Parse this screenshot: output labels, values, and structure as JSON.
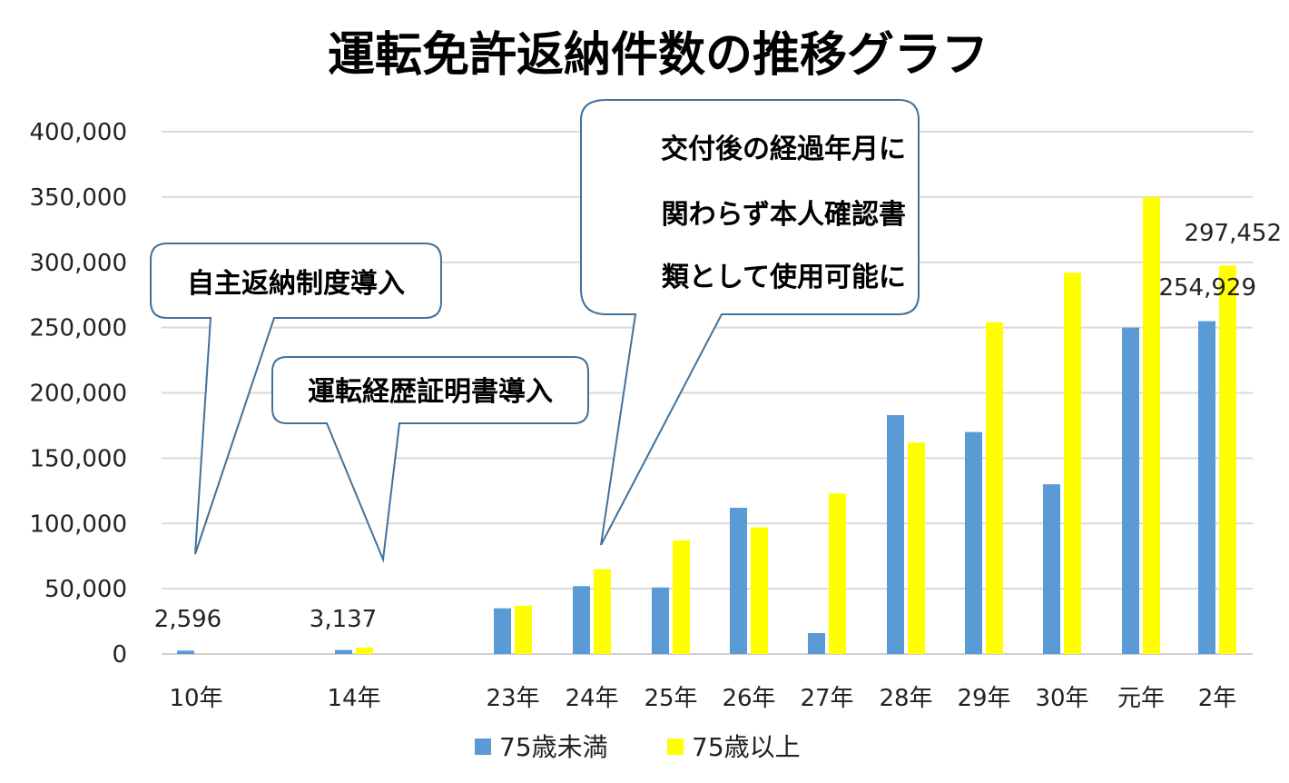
{
  "chart_data": {
    "type": "bar",
    "title": "運転免許返納件数の推移グラフ",
    "categories": [
      "10年",
      "14年",
      "23年",
      "24年",
      "25年",
      "26年",
      "27年",
      "28年",
      "29年",
      "30年",
      "元年",
      "2年"
    ],
    "series": [
      {
        "name": "75歳未満",
        "color": "#5b9bd5",
        "values": [
          2596,
          3137,
          35000,
          52000,
          51000,
          112000,
          16000,
          183000,
          170000,
          130000,
          250000,
          254929
        ]
      },
      {
        "name": "75歳以上",
        "color": "#ffff00",
        "values": [
          0,
          5000,
          37000,
          65000,
          87000,
          97000,
          123000,
          162000,
          254000,
          292000,
          350000,
          297452
        ]
      }
    ],
    "ylim": [
      0,
      400000
    ],
    "yticks": [
      "0",
      "50,000",
      "100,000",
      "150,000",
      "200,000",
      "250,000",
      "300,000",
      "350,000",
      "400,000"
    ],
    "ytick_values": [
      0,
      50000,
      100000,
      150000,
      200000,
      250000,
      300000,
      350000,
      400000
    ],
    "data_labels": [
      {
        "text": "2,596",
        "category": "10年",
        "series": "75歳未満"
      },
      {
        "text": "3,137",
        "category": "14年",
        "series": "75歳未満"
      },
      {
        "text": "297,452",
        "category": "2年",
        "series": "75歳以上"
      },
      {
        "text": "254,929",
        "category": "2年",
        "series": "75歳未満"
      }
    ],
    "legend": {
      "placement": "bottom",
      "items": [
        "75歳未満",
        "75歳以上"
      ]
    },
    "grid": true,
    "xlabel": "",
    "ylabel": ""
  },
  "annotations": [
    {
      "lines": [
        "自主返納制度導入"
      ],
      "points_to": "10年"
    },
    {
      "lines": [
        "運転経歴証明書導入"
      ],
      "points_to": "14年"
    },
    {
      "lines": [
        "交付後の経過年月に",
        "関わらず本人確認書",
        "類として使用可能に"
      ],
      "points_to": "24年"
    }
  ]
}
